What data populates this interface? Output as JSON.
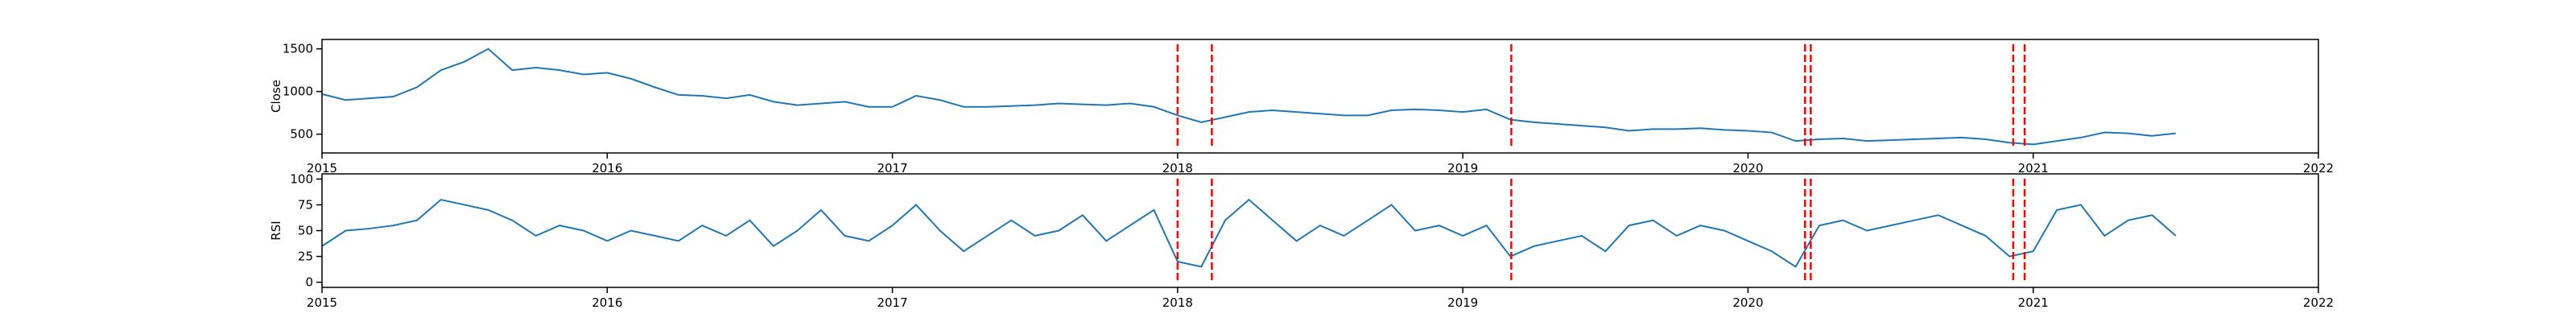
{
  "chart_data": [
    {
      "type": "line",
      "y_label": "Close",
      "x": [
        2015.0,
        2015.083,
        2015.167,
        2015.25,
        2015.333,
        2015.417,
        2015.5,
        2015.583,
        2015.667,
        2015.75,
        2015.833,
        2015.917,
        2016.0,
        2016.083,
        2016.167,
        2016.25,
        2016.333,
        2016.417,
        2016.5,
        2016.583,
        2016.667,
        2016.75,
        2016.833,
        2016.917,
        2017.0,
        2017.083,
        2017.167,
        2017.25,
        2017.333,
        2017.417,
        2017.5,
        2017.583,
        2017.667,
        2017.75,
        2017.833,
        2017.917,
        2018.0,
        2018.083,
        2018.167,
        2018.25,
        2018.333,
        2018.417,
        2018.5,
        2018.583,
        2018.667,
        2018.75,
        2018.833,
        2018.917,
        2019.0,
        2019.083,
        2019.167,
        2019.25,
        2019.333,
        2019.417,
        2019.5,
        2019.583,
        2019.667,
        2019.75,
        2019.833,
        2019.917,
        2020.0,
        2020.083,
        2020.167,
        2020.25,
        2020.333,
        2020.417,
        2020.5,
        2020.583,
        2020.667,
        2020.75,
        2020.833,
        2020.917,
        2021.0,
        2021.083,
        2021.167,
        2021.25,
        2021.333,
        2021.417,
        2021.5
      ],
      "series": [
        {
          "color": "#1f77b4",
          "values": [
            970,
            900,
            920,
            940,
            1050,
            1250,
            1350,
            1500,
            1250,
            1280,
            1250,
            1200,
            1220,
            1150,
            1050,
            960,
            950,
            920,
            960,
            880,
            840,
            860,
            880,
            820,
            820,
            950,
            900,
            820,
            820,
            830,
            840,
            860,
            850,
            840,
            860,
            820,
            720,
            640,
            700,
            760,
            780,
            760,
            740,
            720,
            720,
            780,
            790,
            780,
            760,
            790,
            670,
            640,
            620,
            600,
            580,
            540,
            560,
            560,
            570,
            550,
            540,
            520,
            420,
            440,
            450,
            420,
            430,
            440,
            450,
            460,
            440,
            400,
            380,
            420,
            460,
            520,
            510,
            480,
            510
          ]
        }
      ],
      "xlim": [
        2015,
        2022
      ],
      "xticks": [
        2015,
        2016,
        2017,
        2018,
        2019,
        2020,
        2021,
        2022
      ],
      "ylim": [
        280,
        1610
      ],
      "yticks": [
        500,
        1000,
        1500
      ],
      "vlines": {
        "color": "#ff0000",
        "x": [
          2018.0,
          2018.12,
          2019.17,
          2020.2,
          2020.22,
          2020.93,
          2020.97
        ]
      }
    },
    {
      "type": "line",
      "y_label": "RSI",
      "x": [
        2015.0,
        2015.083,
        2015.167,
        2015.25,
        2015.333,
        2015.417,
        2015.5,
        2015.583,
        2015.667,
        2015.75,
        2015.833,
        2015.917,
        2016.0,
        2016.083,
        2016.167,
        2016.25,
        2016.333,
        2016.417,
        2016.5,
        2016.583,
        2016.667,
        2016.75,
        2016.833,
        2016.917,
        2017.0,
        2017.083,
        2017.167,
        2017.25,
        2017.333,
        2017.417,
        2017.5,
        2017.583,
        2017.667,
        2017.75,
        2017.833,
        2017.917,
        2018.0,
        2018.083,
        2018.167,
        2018.25,
        2018.333,
        2018.417,
        2018.5,
        2018.583,
        2018.667,
        2018.75,
        2018.833,
        2018.917,
        2019.0,
        2019.083,
        2019.167,
        2019.25,
        2019.333,
        2019.417,
        2019.5,
        2019.583,
        2019.667,
        2019.75,
        2019.833,
        2019.917,
        2020.0,
        2020.083,
        2020.167,
        2020.25,
        2020.333,
        2020.417,
        2020.5,
        2020.583,
        2020.667,
        2020.75,
        2020.833,
        2020.917,
        2021.0,
        2021.083,
        2021.167,
        2021.25,
        2021.333,
        2021.417,
        2021.5
      ],
      "series": [
        {
          "color": "#1f77b4",
          "values": [
            35,
            50,
            52,
            55,
            60,
            80,
            75,
            70,
            60,
            45,
            55,
            50,
            40,
            50,
            45,
            40,
            55,
            45,
            60,
            35,
            50,
            70,
            45,
            40,
            55,
            75,
            50,
            30,
            45,
            60,
            45,
            50,
            65,
            40,
            55,
            70,
            20,
            15,
            60,
            80,
            60,
            40,
            55,
            45,
            60,
            75,
            50,
            55,
            45,
            55,
            25,
            35,
            40,
            45,
            30,
            55,
            60,
            45,
            55,
            50,
            40,
            30,
            15,
            55,
            60,
            50,
            55,
            60,
            65,
            55,
            45,
            25,
            30,
            70,
            75,
            45,
            60,
            65,
            45
          ]
        }
      ],
      "xlim": [
        2015,
        2022
      ],
      "xticks": [
        2015,
        2016,
        2017,
        2018,
        2019,
        2020,
        2021,
        2022
      ],
      "ylim": [
        -5,
        105
      ],
      "yticks": [
        0,
        25,
        50,
        75,
        100
      ],
      "vlines": {
        "color": "#ff0000",
        "x": [
          2018.0,
          2018.12,
          2019.17,
          2020.2,
          2020.22,
          2020.93,
          2020.97
        ]
      }
    }
  ]
}
